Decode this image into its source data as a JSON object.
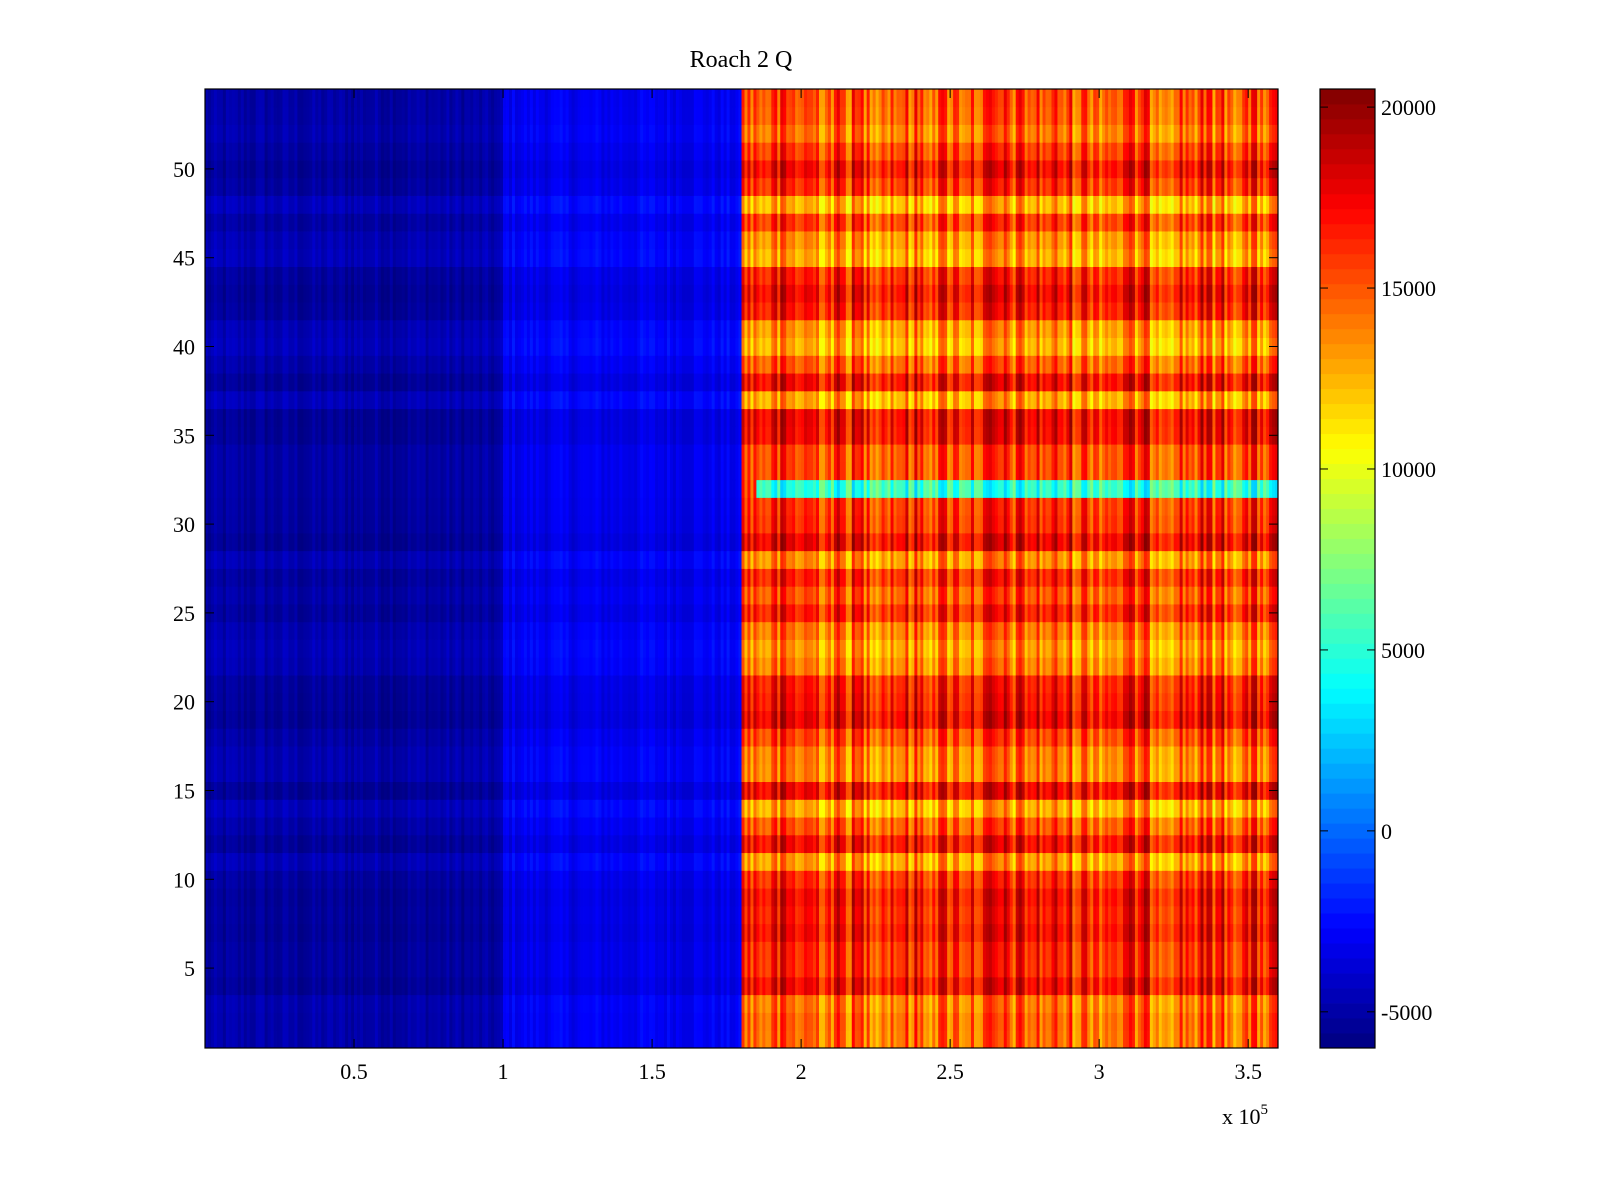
{
  "chart_data": {
    "type": "heatmap",
    "title": "Roach 2 Q",
    "xlabel": "",
    "ylabel": "",
    "x_multiplier_label": "x 10",
    "x_multiplier_exponent": "5",
    "xlim": [
      0,
      3.6
    ],
    "ylim": [
      0.5,
      54.5
    ],
    "x_ticks": [
      0.5,
      1,
      1.5,
      2,
      2.5,
      3,
      3.5
    ],
    "x_tick_labels": [
      "0.5",
      "1",
      "1.5",
      "2",
      "2.5",
      "3",
      "3.5"
    ],
    "y_ticks": [
      5,
      10,
      15,
      20,
      25,
      30,
      35,
      40,
      45,
      50
    ],
    "y_tick_labels": [
      "5",
      "10",
      "15",
      "20",
      "25",
      "30",
      "35",
      "40",
      "45",
      "50"
    ],
    "rows": 54,
    "colorbar": {
      "colormap": "jet",
      "clim": [
        -6000,
        20500
      ],
      "ticks": [
        -5000,
        0,
        5000,
        10000,
        15000,
        20000
      ],
      "tick_labels": [
        "-5000",
        "0",
        "5000",
        "10000",
        "15000",
        "20000"
      ]
    },
    "x_segments": [
      {
        "x_range": [
          0,
          1.0
        ],
        "typical_value": -5000
      },
      {
        "x_range": [
          1.0,
          1.8
        ],
        "typical_value": -3000
      },
      {
        "x_range": [
          1.8,
          3.6
        ],
        "typical_value": 18000
      }
    ],
    "anomaly_rows": [
      {
        "row": 32,
        "x_range": [
          1.85,
          3.6
        ],
        "typical_value": 5000
      }
    ],
    "grid": false,
    "legend": "none"
  }
}
